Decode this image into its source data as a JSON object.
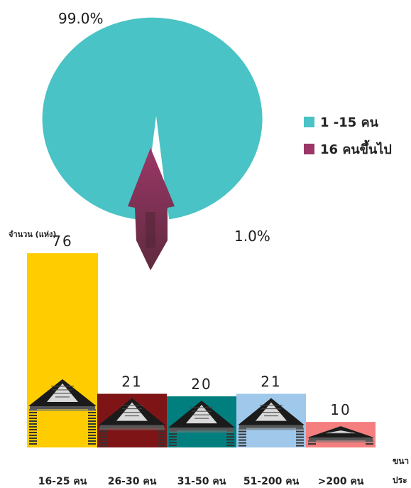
{
  "chart_data": [
    {
      "type": "pie",
      "slices": [
        {
          "label": "1 -15 คน",
          "value": 99.0,
          "value_label": "99.0%",
          "color": "#49C3C5"
        },
        {
          "label": "16 คนขึ้นไป",
          "value": 1.0,
          "value_label": "1.0%",
          "color": "#9B3767"
        }
      ],
      "legend_placement": "right"
    },
    {
      "type": "bar",
      "categories": [
        "16-25 คน",
        "26-30 คน",
        "31-50 คน",
        "51-200 คน",
        ">200 คน"
      ],
      "values": [
        76,
        21,
        20,
        21,
        10
      ],
      "value_labels": [
        "76",
        "21",
        "20",
        "21",
        "10"
      ],
      "colors": [
        "#FFCC00",
        "#7F1416",
        "#007F7E",
        "#9FC8EB",
        "#F47F7E"
      ],
      "ylabel": "จำนวน (แห่ง)",
      "ylim": [
        0,
        76
      ],
      "grid": false
    }
  ],
  "edge_text": [
    "ขนา",
    "ประ"
  ]
}
